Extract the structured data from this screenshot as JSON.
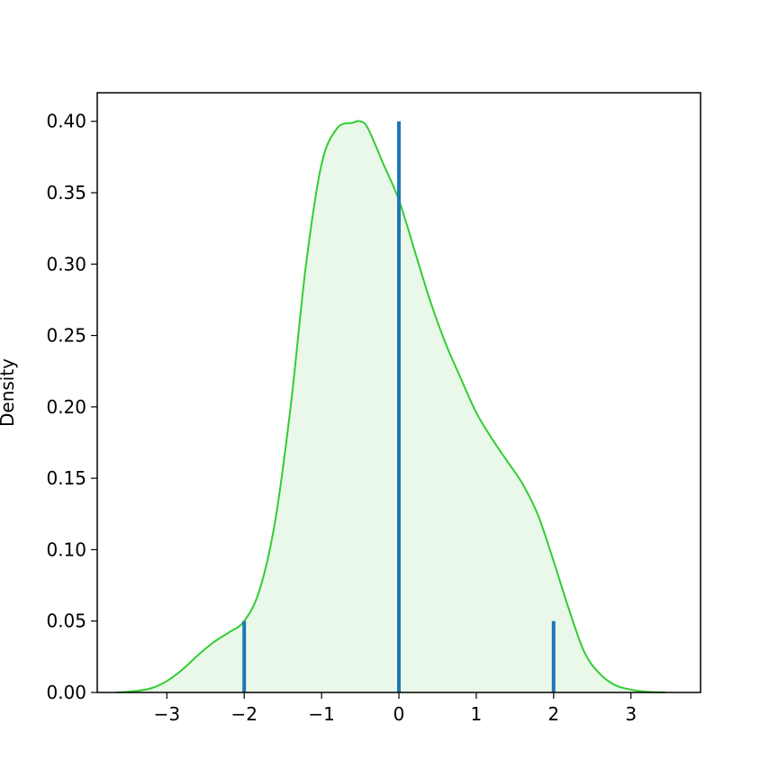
{
  "chart_data": {
    "type": "area",
    "title": "",
    "xlabel": "",
    "ylabel": "Density",
    "xlim": [
      -3.9,
      3.9
    ],
    "ylim": [
      0,
      0.42
    ],
    "xticks": [
      -3,
      -2,
      -1,
      0,
      1,
      2,
      3
    ],
    "xtick_labels": [
      "−3",
      "−2",
      "−1",
      "0",
      "1",
      "2",
      "3"
    ],
    "yticks": [
      0.0,
      0.05,
      0.1,
      0.15,
      0.2,
      0.25,
      0.3,
      0.35,
      0.4
    ],
    "ytick_labels": [
      "0.00",
      "0.05",
      "0.10",
      "0.15",
      "0.20",
      "0.25",
      "0.30",
      "0.35",
      "0.40"
    ],
    "grid": false,
    "legend": "none",
    "kde": {
      "color": "#32cd32",
      "fill_color": "#e9f8e9",
      "x": [
        -3.65,
        -3.4,
        -3.2,
        -3.0,
        -2.8,
        -2.6,
        -2.4,
        -2.2,
        -2.0,
        -1.8,
        -1.6,
        -1.4,
        -1.2,
        -1.0,
        -0.8,
        -0.6,
        -0.5,
        -0.4,
        -0.2,
        0.0,
        0.2,
        0.4,
        0.6,
        0.8,
        1.0,
        1.2,
        1.4,
        1.6,
        1.8,
        2.0,
        2.2,
        2.4,
        2.6,
        2.8,
        3.0,
        3.2,
        3.45
      ],
      "y": [
        0.0,
        0.001,
        0.003,
        0.008,
        0.016,
        0.026,
        0.035,
        0.042,
        0.05,
        0.072,
        0.12,
        0.2,
        0.3,
        0.37,
        0.395,
        0.399,
        0.4,
        0.395,
        0.37,
        0.345,
        0.31,
        0.275,
        0.245,
        0.22,
        0.196,
        0.178,
        0.162,
        0.146,
        0.124,
        0.092,
        0.058,
        0.028,
        0.013,
        0.005,
        0.002,
        0.0005,
        0.0
      ]
    },
    "stems": {
      "color": "#1f77b4",
      "x": [
        -2,
        0,
        2
      ],
      "y": [
        0.05,
        0.4,
        0.05
      ]
    }
  }
}
